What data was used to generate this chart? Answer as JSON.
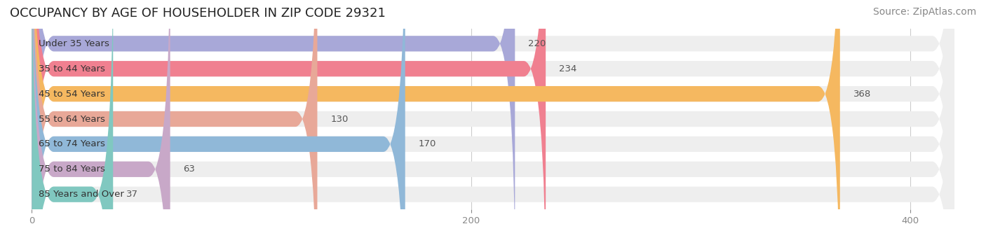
{
  "title": "OCCUPANCY BY AGE OF HOUSEHOLDER IN ZIP CODE 29321",
  "source": "Source: ZipAtlas.com",
  "categories": [
    "Under 35 Years",
    "35 to 44 Years",
    "45 to 54 Years",
    "55 to 64 Years",
    "65 to 74 Years",
    "75 to 84 Years",
    "85 Years and Over"
  ],
  "values": [
    220,
    234,
    368,
    130,
    170,
    63,
    37
  ],
  "bar_colors": [
    "#a8a8d8",
    "#f08090",
    "#f5b860",
    "#e8a898",
    "#90b8d8",
    "#c8a8c8",
    "#80c8c0"
  ],
  "bar_bg_color": "#eeeeee",
  "xlim": [
    -10,
    430
  ],
  "xticks": [
    0,
    200,
    400
  ],
  "title_fontsize": 13,
  "source_fontsize": 10,
  "label_fontsize": 9.5,
  "value_fontsize": 9.5,
  "bar_height": 0.62,
  "bg_color": "#ffffff",
  "grid_color": "#cccccc"
}
